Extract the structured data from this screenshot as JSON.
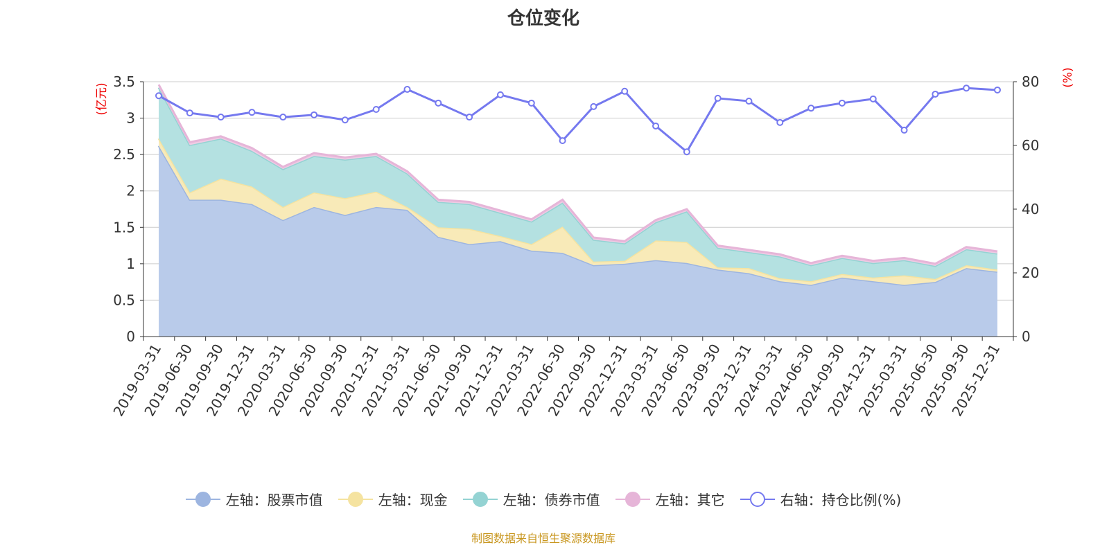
{
  "chart_data": {
    "type": "area",
    "title": "仓位变化",
    "left_axis_label": "(亿元)",
    "right_axis_label": "(%)",
    "left_ylim": [
      0,
      3.5
    ],
    "left_ticks": [
      "0",
      "0.5",
      "1",
      "1.5",
      "2",
      "2.5",
      "3",
      "3.5"
    ],
    "right_ylim": [
      0,
      80
    ],
    "right_ticks": [
      "0",
      "20",
      "40",
      "60",
      "80"
    ],
    "grid": true,
    "legend_position": "bottom",
    "categories": [
      "2019-03-31",
      "2019-06-30",
      "2019-09-30",
      "2019-12-31",
      "2020-03-31",
      "2020-06-30",
      "2020-09-30",
      "2020-12-31",
      "2021-03-31",
      "2021-06-30",
      "2021-09-30",
      "2021-12-31",
      "2022-03-31",
      "2022-06-30",
      "2022-09-30",
      "2022-12-31",
      "2023-03-31",
      "2023-06-30",
      "2023-09-30",
      "2023-12-31",
      "2024-03-31",
      "2024-06-30",
      "2024-09-30",
      "2024-12-31",
      "2025-03-31",
      "2025-06-30",
      "2025-09-30",
      "2025-12-31"
    ],
    "series": [
      {
        "name": "左轴：股票市值",
        "axis": "left",
        "stack": true,
        "color": "#9db5e0",
        "fill": "#b9cbea",
        "values": [
          2.62,
          1.88,
          1.88,
          1.82,
          1.6,
          1.78,
          1.67,
          1.78,
          1.74,
          1.37,
          1.27,
          1.31,
          1.18,
          1.15,
          0.98,
          1.0,
          1.05,
          1.01,
          0.92,
          0.87,
          0.76,
          0.71,
          0.81,
          0.76,
          0.71,
          0.75,
          0.94,
          0.89
        ]
      },
      {
        "name": "左轴：现金",
        "axis": "left",
        "stack": true,
        "color": "#f5e3a0",
        "fill": "#f8eab8",
        "values": [
          0.1,
          0.1,
          0.29,
          0.24,
          0.18,
          0.2,
          0.23,
          0.21,
          0.04,
          0.13,
          0.21,
          0.07,
          0.09,
          0.36,
          0.05,
          0.04,
          0.27,
          0.29,
          0.03,
          0.07,
          0.04,
          0.05,
          0.05,
          0.05,
          0.13,
          0.04,
          0.04,
          0.03
        ]
      },
      {
        "name": "左轴：债券市值",
        "axis": "left",
        "stack": true,
        "color": "#94d3d3",
        "fill": "#b4e1e1",
        "values": [
          0.7,
          0.65,
          0.55,
          0.49,
          0.52,
          0.5,
          0.53,
          0.49,
          0.46,
          0.35,
          0.34,
          0.32,
          0.31,
          0.33,
          0.3,
          0.24,
          0.25,
          0.42,
          0.27,
          0.22,
          0.3,
          0.22,
          0.22,
          0.2,
          0.21,
          0.18,
          0.22,
          0.22
        ]
      },
      {
        "name": "左轴：其它",
        "axis": "left",
        "stack": true,
        "color": "#e6b5d8",
        "fill": "#efcbe4",
        "values": [
          0.04,
          0.04,
          0.03,
          0.04,
          0.03,
          0.04,
          0.03,
          0.03,
          0.03,
          0.03,
          0.03,
          0.03,
          0.03,
          0.04,
          0.03,
          0.03,
          0.03,
          0.03,
          0.03,
          0.03,
          0.03,
          0.03,
          0.03,
          0.03,
          0.03,
          0.03,
          0.03,
          0.03
        ]
      },
      {
        "name": "右轴：持仓比例(%)",
        "axis": "right",
        "stack": false,
        "color": "#7579ef",
        "values": [
          75.6,
          70.2,
          68.9,
          70.4,
          68.9,
          69.6,
          68.0,
          71.3,
          77.6,
          73.3,
          68.9,
          75.9,
          73.3,
          61.5,
          72.2,
          77.0,
          66.1,
          58.0,
          74.8,
          73.9,
          67.2,
          71.7,
          73.3,
          74.6,
          64.8,
          76.1,
          78.0,
          77.4
        ]
      }
    ]
  },
  "footer": "制图数据来自恒生聚源数据库"
}
